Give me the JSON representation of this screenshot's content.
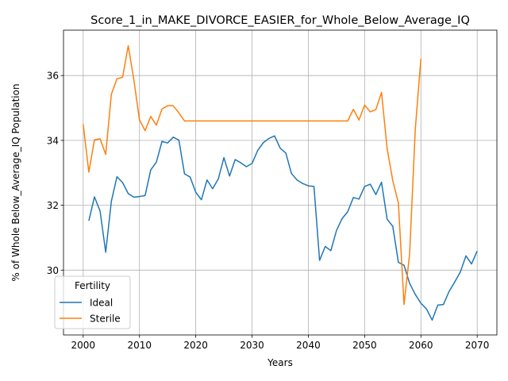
{
  "chart_data": {
    "type": "line",
    "title": "Score_1_in_MAKE_DIVORCE_EASIER_for_Whole_Below_Average_IQ",
    "xlabel": "Years",
    "ylabel": "% of Whole Below_Average_IQ Population",
    "xlim": [
      1996.5,
      2073.5
    ],
    "ylim": [
      28.0,
      37.4
    ],
    "xticks": [
      2000,
      2010,
      2020,
      2030,
      2040,
      2050,
      2060,
      2070
    ],
    "yticks": [
      30,
      32,
      34,
      36
    ],
    "grid": true,
    "legend": {
      "title": "Fertility",
      "placement": "lower-left"
    },
    "series": [
      {
        "name": "Ideal",
        "color": "#1f77b4",
        "x": [
          2001,
          2002,
          2003,
          2004,
          2005,
          2006,
          2007,
          2008,
          2009,
          2010,
          2011,
          2012,
          2013,
          2014,
          2015,
          2016,
          2017,
          2018,
          2019,
          2020,
          2021,
          2022,
          2023,
          2024,
          2025,
          2026,
          2027,
          2028,
          2029,
          2030,
          2031,
          2032,
          2033,
          2034,
          2035,
          2036,
          2037,
          2038,
          2039,
          2040,
          2041,
          2042,
          2043,
          2044,
          2045,
          2046,
          2047,
          2048,
          2049,
          2050,
          2051,
          2052,
          2053,
          2054,
          2055,
          2056,
          2057,
          2058,
          2059,
          2060,
          2061,
          2062,
          2063,
          2064,
          2065,
          2066,
          2067,
          2068,
          2069,
          2070
        ],
        "values": [
          31.52,
          32.26,
          31.82,
          30.55,
          32.12,
          32.88,
          32.7,
          32.36,
          32.25,
          32.27,
          32.3,
          33.09,
          33.33,
          33.97,
          33.92,
          34.1,
          34.01,
          32.97,
          32.87,
          32.4,
          32.17,
          32.78,
          32.51,
          32.81,
          33.47,
          32.9,
          33.41,
          33.31,
          33.19,
          33.29,
          33.69,
          33.93,
          34.06,
          34.14,
          33.76,
          33.61,
          32.98,
          32.78,
          32.67,
          32.6,
          32.58,
          30.3,
          30.73,
          30.6,
          31.22,
          31.59,
          31.8,
          32.24,
          32.19,
          32.58,
          32.65,
          32.33,
          32.71,
          31.57,
          31.35,
          30.24,
          30.15,
          29.59,
          29.25,
          28.98,
          28.8,
          28.46,
          28.92,
          28.94,
          29.34,
          29.63,
          29.94,
          30.44,
          30.19,
          30.59
        ]
      },
      {
        "name": "Sterile",
        "color": "#ff7f0e",
        "x": [
          2000,
          2001,
          2002,
          2003,
          2004,
          2005,
          2006,
          2007,
          2008,
          2009,
          2010,
          2011,
          2012,
          2013,
          2014,
          2015,
          2016,
          2017,
          2018,
          2019,
          2020,
          2021,
          2022,
          2023,
          2024,
          2025,
          2026,
          2027,
          2028,
          2029,
          2030,
          2031,
          2032,
          2033,
          2034,
          2035,
          2036,
          2037,
          2038,
          2039,
          2040,
          2041,
          2042,
          2043,
          2044,
          2045,
          2046,
          2047,
          2048,
          2049,
          2050,
          2051,
          2052,
          2053,
          2054,
          2055,
          2056,
          2057,
          2058,
          2059,
          2060
        ],
        "values": [
          34.5,
          33.02,
          34.02,
          34.05,
          33.57,
          35.42,
          35.9,
          35.95,
          36.92,
          35.87,
          34.63,
          34.3,
          34.74,
          34.47,
          34.97,
          35.07,
          35.07,
          34.85,
          34.6,
          34.6,
          34.6,
          34.6,
          34.6,
          34.6,
          34.6,
          34.6,
          34.6,
          34.6,
          34.6,
          34.6,
          34.6,
          34.6,
          34.6,
          34.6,
          34.6,
          34.6,
          34.6,
          34.6,
          34.6,
          34.6,
          34.6,
          34.6,
          34.6,
          34.6,
          34.6,
          34.6,
          34.6,
          34.6,
          34.96,
          34.63,
          35.09,
          34.88,
          34.95,
          35.48,
          33.75,
          32.76,
          32.07,
          28.94,
          30.51,
          34.34,
          36.52
        ]
      }
    ]
  }
}
